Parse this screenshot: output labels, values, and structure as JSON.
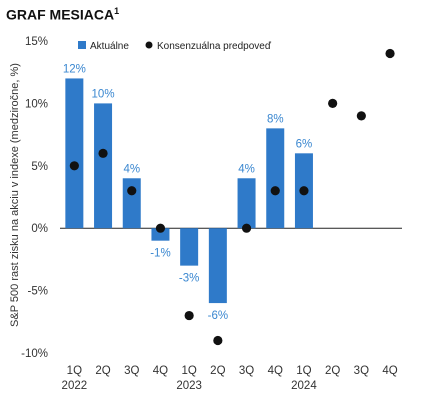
{
  "header": {
    "title": "GRAF MESIACA",
    "title_sup": "1"
  },
  "chart_data": {
    "type": "bar",
    "categories": [
      "1Q",
      "2Q",
      "3Q",
      "4Q",
      "1Q",
      "2Q",
      "3Q",
      "4Q",
      "1Q",
      "2Q",
      "3Q",
      "4Q"
    ],
    "years": [
      {
        "label": "2022",
        "index": 0
      },
      {
        "label": "2023",
        "index": 4
      },
      {
        "label": "2024",
        "index": 8
      }
    ],
    "series": [
      {
        "name": "Aktuálne",
        "kind": "bar",
        "color": "#2f7ac9",
        "values": [
          12,
          10,
          4,
          -1,
          -3,
          -6,
          4,
          8,
          6,
          null,
          null,
          null
        ],
        "labels": [
          "12%",
          "10%",
          "4%",
          "-1%",
          "-3%",
          "-6%",
          "4%",
          "8%",
          "6%",
          "",
          "",
          ""
        ]
      },
      {
        "name": "Konsenzuálna predpoveď",
        "kind": "dot",
        "color": "#111111",
        "values": [
          5,
          6,
          3,
          0,
          -7,
          -9,
          0,
          3,
          3,
          10,
          9,
          14
        ]
      }
    ],
    "ylabel": "S&P 500 rast zisku na akciu v indexe (medziročne, %)",
    "yticks": [
      {
        "value": 15,
        "label": "15%"
      },
      {
        "value": 10,
        "label": "10%"
      },
      {
        "value": 5,
        "label": "5%"
      },
      {
        "value": 0,
        "label": "0%"
      },
      {
        "value": -5,
        "label": "-5%"
      },
      {
        "value": -10,
        "label": "-10%"
      }
    ],
    "ylim": [
      -10,
      15
    ],
    "legend": {
      "position": "top-left",
      "items": [
        "Aktuálne",
        "Konsenzuálna predpoveď"
      ]
    }
  }
}
